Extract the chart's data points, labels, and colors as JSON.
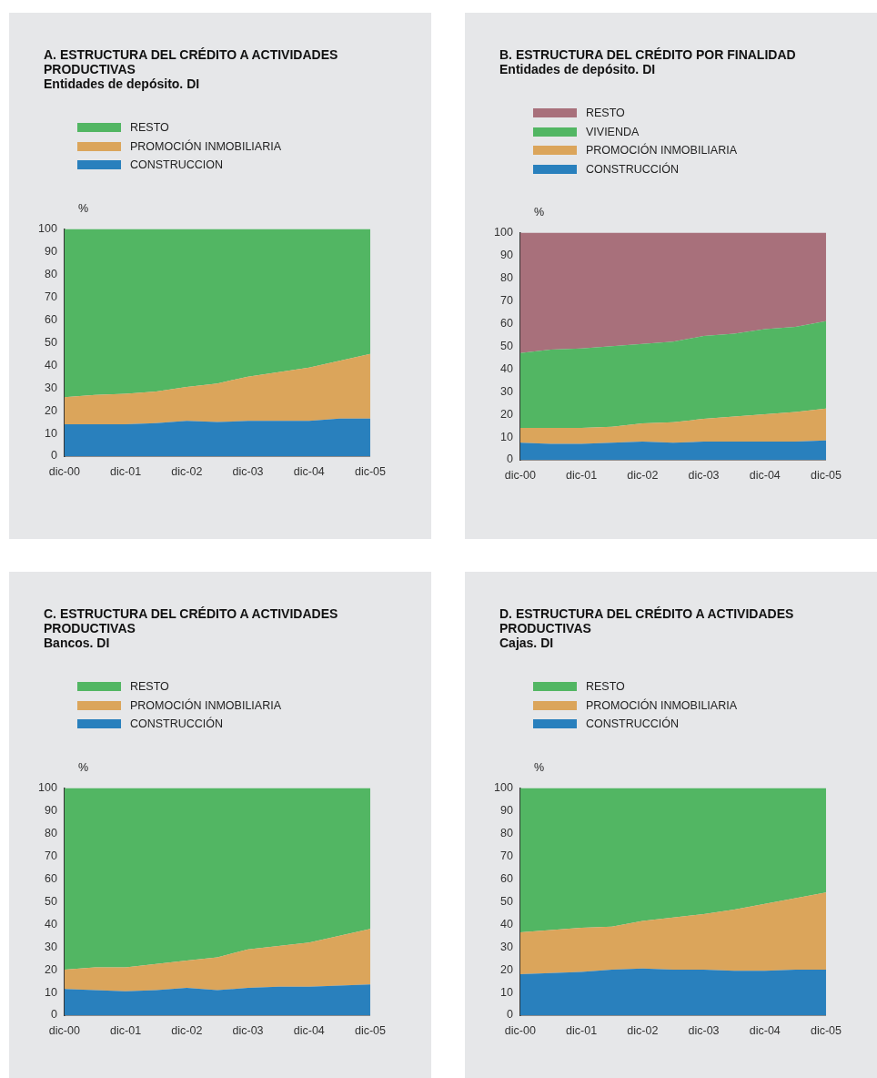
{
  "chart_data": [
    {
      "type": "area",
      "stacked": true,
      "title": "A.  ESTRUCTURA DEL CRÉDITO A ACTIVIDADES PRODUCTIVAS",
      "subtitle": "Entidades de depósito. DI",
      "ylabel": "%",
      "legend": "top",
      "categories": [
        "dic-00",
        null,
        "dic-01",
        null,
        "dic-02",
        null,
        "dic-03",
        null,
        "dic-04",
        null,
        "dic-05"
      ],
      "ylim": [
        0,
        100
      ],
      "yticks": [
        0,
        10,
        20,
        30,
        40,
        50,
        60,
        70,
        80,
        90,
        100
      ],
      "series": [
        {
          "name": "CONSTRUCCION",
          "color": "#2980bd",
          "values": [
            14,
            14,
            14,
            14.5,
            15.5,
            15,
            15.5,
            15.5,
            15.5,
            16.5,
            16.5
          ]
        },
        {
          "name": "PROMOCIÓN INMOBILIARIA",
          "color": "#dba55b",
          "values": [
            12,
            13,
            13.5,
            14,
            15,
            17,
            19.5,
            21.5,
            23.5,
            25.5,
            28.5
          ]
        },
        {
          "name": "RESTO",
          "color": "#52b663",
          "values": [
            74,
            73,
            72.5,
            71.5,
            69.5,
            68,
            65,
            63,
            61,
            58,
            55
          ]
        }
      ]
    },
    {
      "type": "area",
      "stacked": true,
      "title": "B.  ESTRUCTURA DEL CRÉDITO POR FINALIDAD",
      "subtitle": "Entidades de depósito. DI",
      "ylabel": "%",
      "legend": "top",
      "categories": [
        "dic-00",
        null,
        "dic-01",
        null,
        "dic-02",
        null,
        "dic-03",
        null,
        "dic-04",
        null,
        "dic-05"
      ],
      "ylim": [
        0,
        100
      ],
      "yticks": [
        0,
        10,
        20,
        30,
        40,
        50,
        60,
        70,
        80,
        90,
        100
      ],
      "series": [
        {
          "name": "CONSTRUCCIÓN",
          "color": "#2980bd",
          "values": [
            7.5,
            7,
            7,
            7.5,
            8,
            7.5,
            8,
            8,
            8,
            8,
            8.5
          ]
        },
        {
          "name": "PROMOCIÓN INMOBILIARIA",
          "color": "#dba55b",
          "values": [
            6.5,
            7,
            7,
            7,
            8,
            9,
            10,
            11,
            12,
            13,
            14
          ]
        },
        {
          "name": "VIVIENDA",
          "color": "#52b663",
          "values": [
            33,
            34.5,
            35,
            35.5,
            35,
            35.5,
            36.5,
            36.5,
            37.5,
            37.5,
            38.5
          ]
        },
        {
          "name": "RESTO",
          "color": "#a8707b",
          "values": [
            53,
            51.5,
            51,
            50,
            49,
            48,
            45.5,
            44.5,
            42.5,
            41.5,
            39
          ]
        }
      ]
    },
    {
      "type": "area",
      "stacked": true,
      "title": "C.  ESTRUCTURA DEL CRÉDITO A ACTIVIDADES PRODUCTIVAS",
      "subtitle": "Bancos. DI",
      "ylabel": "%",
      "legend": "top",
      "categories": [
        "dic-00",
        null,
        "dic-01",
        null,
        "dic-02",
        null,
        "dic-03",
        null,
        "dic-04",
        null,
        "dic-05"
      ],
      "ylim": [
        0,
        100
      ],
      "yticks": [
        0,
        10,
        20,
        30,
        40,
        50,
        60,
        70,
        80,
        90,
        100
      ],
      "series": [
        {
          "name": "CONSTRUCCIÓN",
          "color": "#2980bd",
          "values": [
            11.5,
            11,
            10.5,
            11,
            12,
            11,
            12,
            12.5,
            12.5,
            13,
            13.5
          ]
        },
        {
          "name": "PROMOCIÓN INMOBILIARIA",
          "color": "#dba55b",
          "values": [
            8.5,
            10,
            10.5,
            11.5,
            12,
            14.5,
            17,
            18,
            19.5,
            22,
            24.5
          ]
        },
        {
          "name": "RESTO",
          "color": "#52b663",
          "values": [
            80,
            79,
            79,
            77.5,
            76,
            74.5,
            71,
            69.5,
            68,
            65,
            62
          ]
        }
      ]
    },
    {
      "type": "area",
      "stacked": true,
      "title": "D.  ESTRUCTURA DEL CRÉDITO A ACTIVIDADES PRODUCTIVAS",
      "subtitle": "Cajas. DI",
      "ylabel": "%",
      "legend": "top",
      "categories": [
        "dic-00",
        null,
        "dic-01",
        null,
        "dic-02",
        null,
        "dic-03",
        null,
        "dic-04",
        null,
        "dic-05"
      ],
      "ylim": [
        0,
        100
      ],
      "yticks": [
        0,
        10,
        20,
        30,
        40,
        50,
        60,
        70,
        80,
        90,
        100
      ],
      "series": [
        {
          "name": "CONSTRUCCIÓN",
          "color": "#2980bd",
          "values": [
            18,
            18.5,
            19,
            20,
            20.5,
            20,
            20,
            19.5,
            19.5,
            20,
            20
          ]
        },
        {
          "name": "PROMOCIÓN INMOBILIARIA",
          "color": "#dba55b",
          "values": [
            18.5,
            19,
            19.5,
            19,
            21,
            23,
            24.5,
            27,
            29.5,
            31.5,
            34
          ]
        },
        {
          "name": "RESTO",
          "color": "#52b663",
          "values": [
            63.5,
            62.5,
            61.5,
            61,
            58.5,
            57,
            55.5,
            53.5,
            51,
            48.5,
            46
          ]
        }
      ]
    }
  ]
}
